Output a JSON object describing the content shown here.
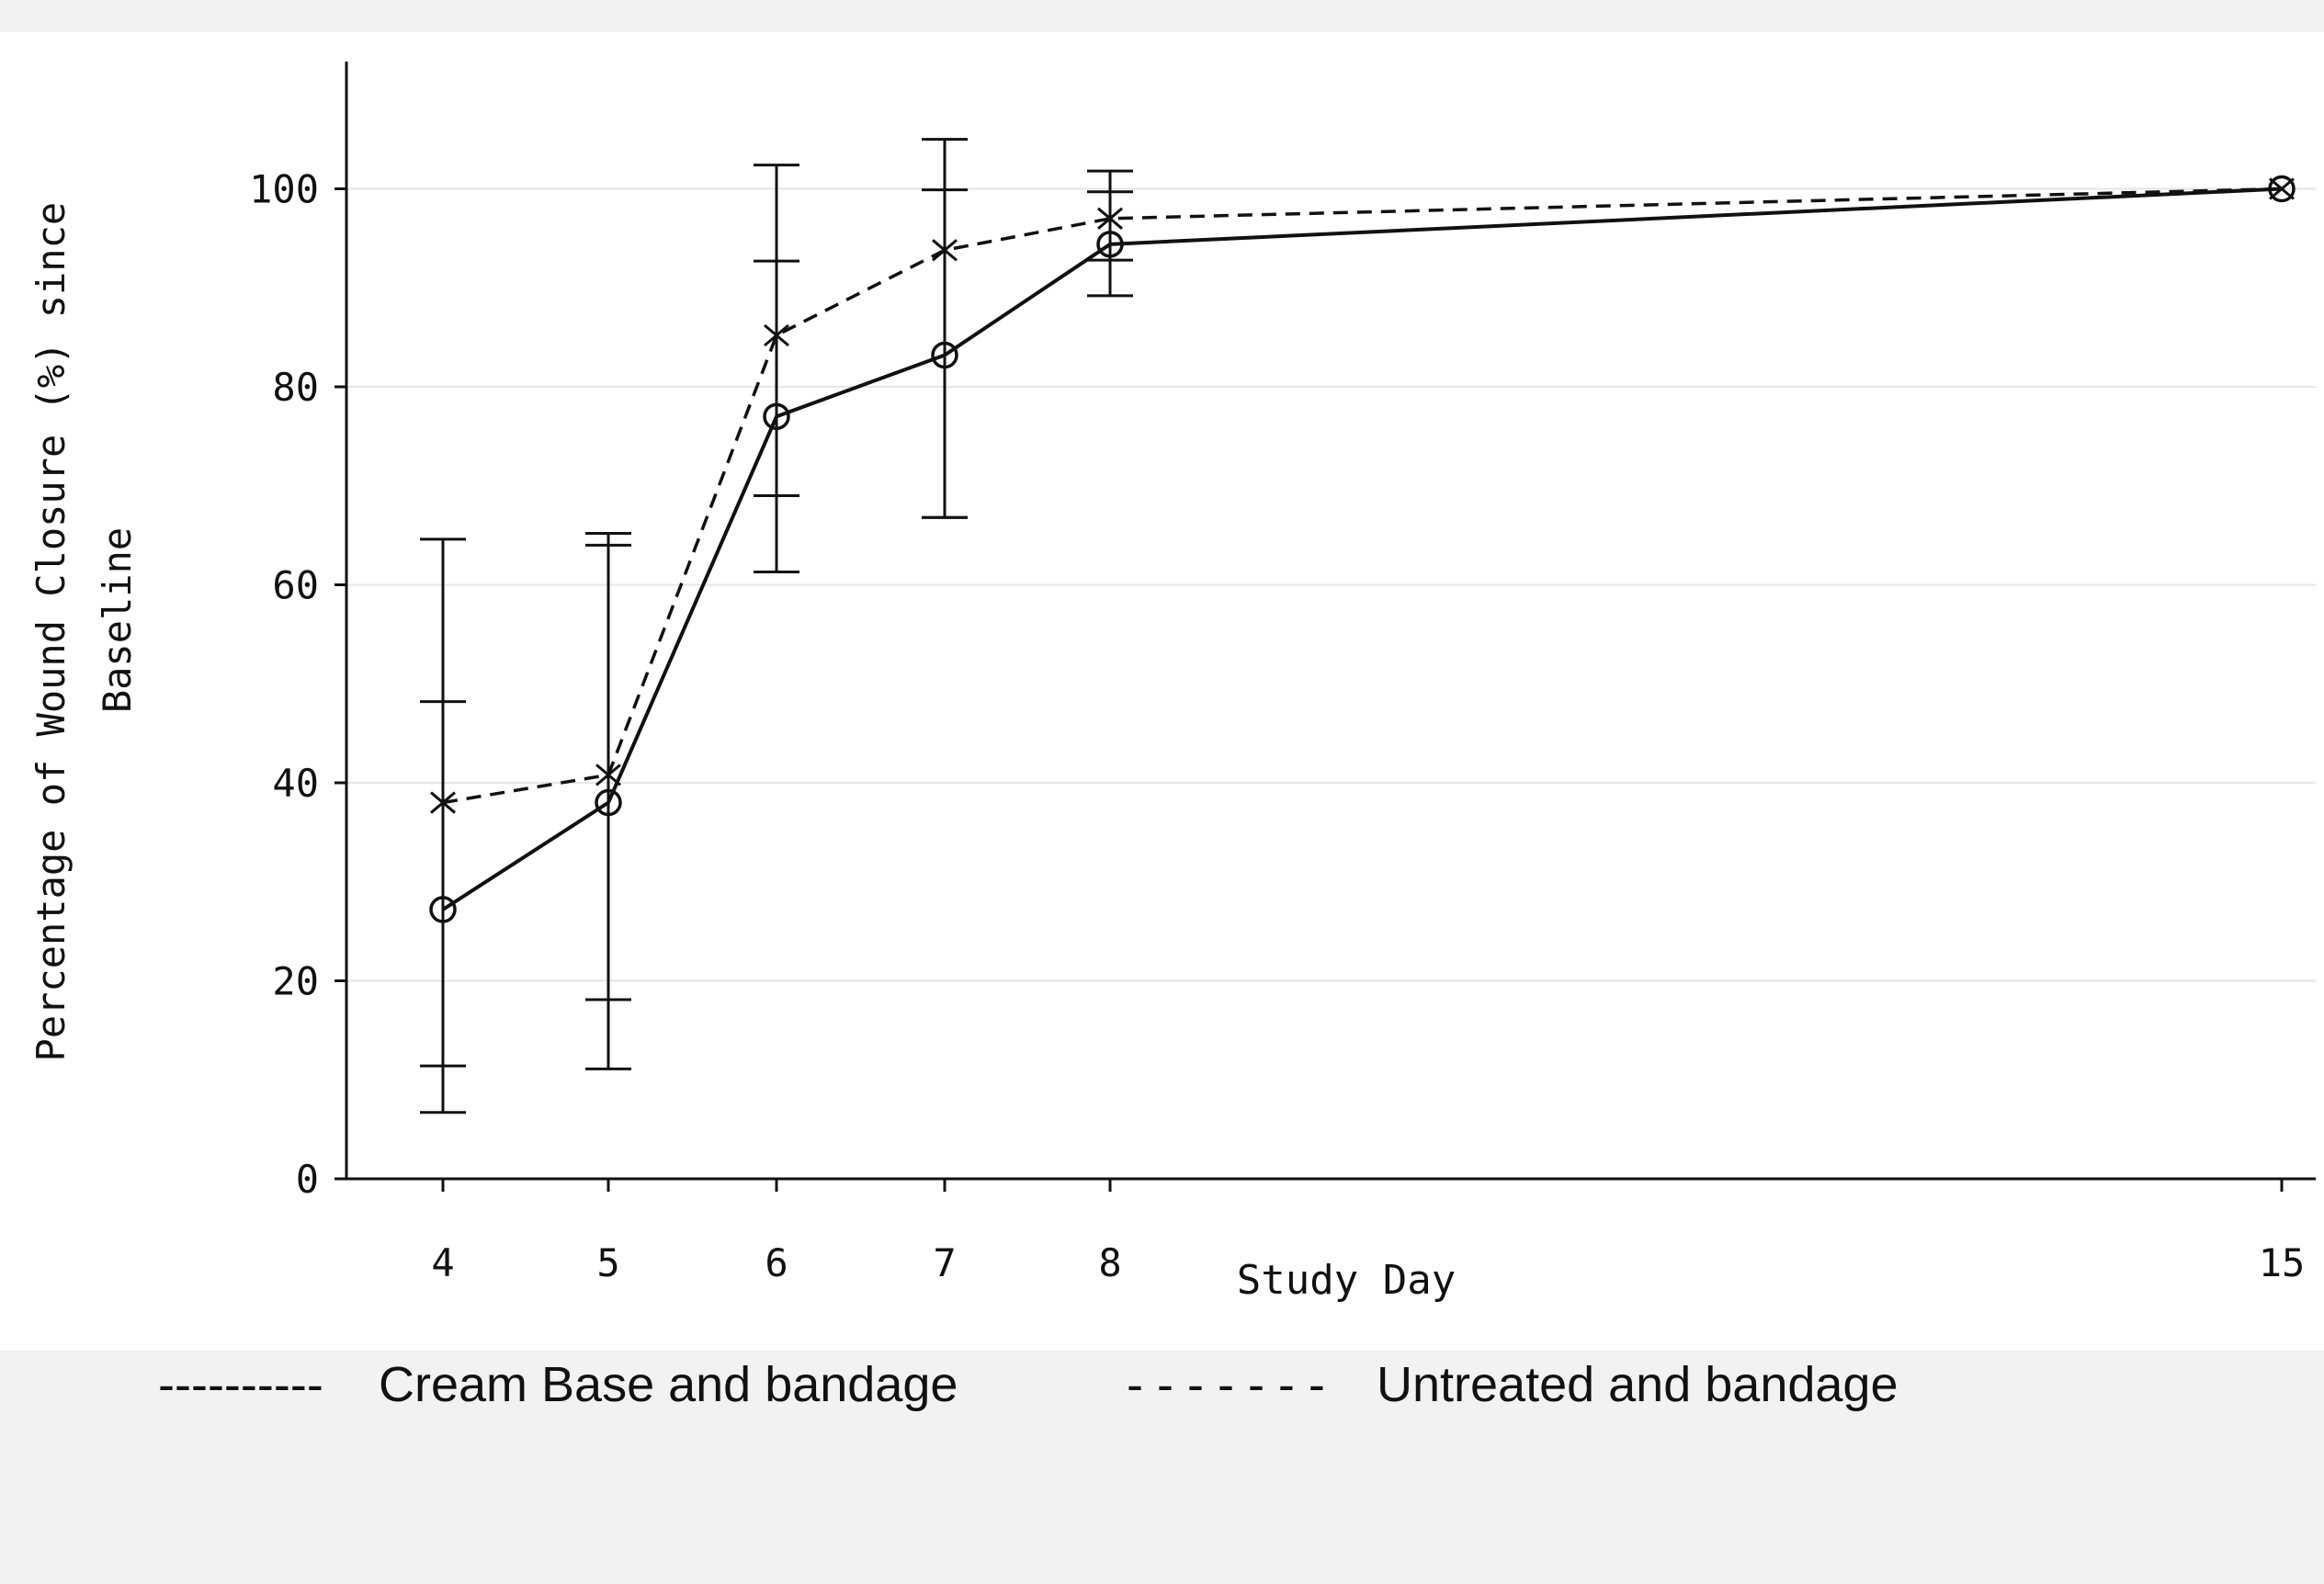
{
  "chart_data": {
    "type": "line",
    "title": "",
    "xlabel": "Study Day",
    "ylabel_lines": [
      "Percentage of Wound Closure (%) since",
      "Baseline"
    ],
    "x": [
      4,
      5,
      6,
      7,
      8,
      15
    ],
    "x_tick_labels": [
      "4",
      "5",
      "6",
      "7",
      "8",
      "15"
    ],
    "y_ticks": [
      0,
      20,
      40,
      60,
      80,
      100
    ],
    "ylim": [
      0,
      112
    ],
    "grid": "horizontal",
    "legend_position": "bottom",
    "series": [
      {
        "name": "Cream Base and bandage",
        "legend_key": "----------",
        "marker": "circle",
        "line_style": "solid",
        "values": [
          27.2,
          38.0,
          77.0,
          83.2,
          94.4,
          100
        ],
        "err_low": [
          6.7,
          11.1,
          61.3,
          66.8,
          89.2,
          100
        ],
        "err_high": [
          48.2,
          65.2,
          92.7,
          99.9,
          99.7,
          100
        ]
      },
      {
        "name": "Untreated and bandage",
        "legend_key": "- - - - - - -",
        "marker": "x",
        "line_style": "dashed",
        "values": [
          38.0,
          40.8,
          85.2,
          93.8,
          97.0,
          100
        ],
        "err_low": [
          11.4,
          18.1,
          69.0,
          66.8,
          92.8,
          100
        ],
        "err_high": [
          64.6,
          64.0,
          102.4,
          105.0,
          101.8,
          100
        ]
      }
    ]
  },
  "colors": {
    "axis": "#111111",
    "grid": "#e6e6e6",
    "series": "#111111"
  }
}
